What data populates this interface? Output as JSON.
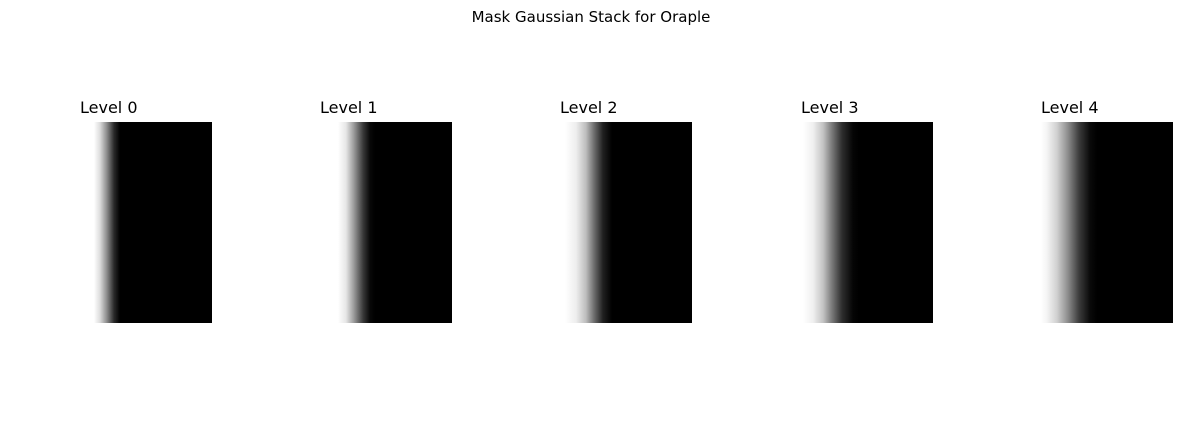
{
  "figure": {
    "title": "Mask Gaussian Stack for Oraple"
  },
  "panels": [
    {
      "title": "Level 0"
    },
    {
      "title": "Level 1"
    },
    {
      "title": "Level 2"
    },
    {
      "title": "Level 3"
    },
    {
      "title": "Level 4"
    }
  ]
}
